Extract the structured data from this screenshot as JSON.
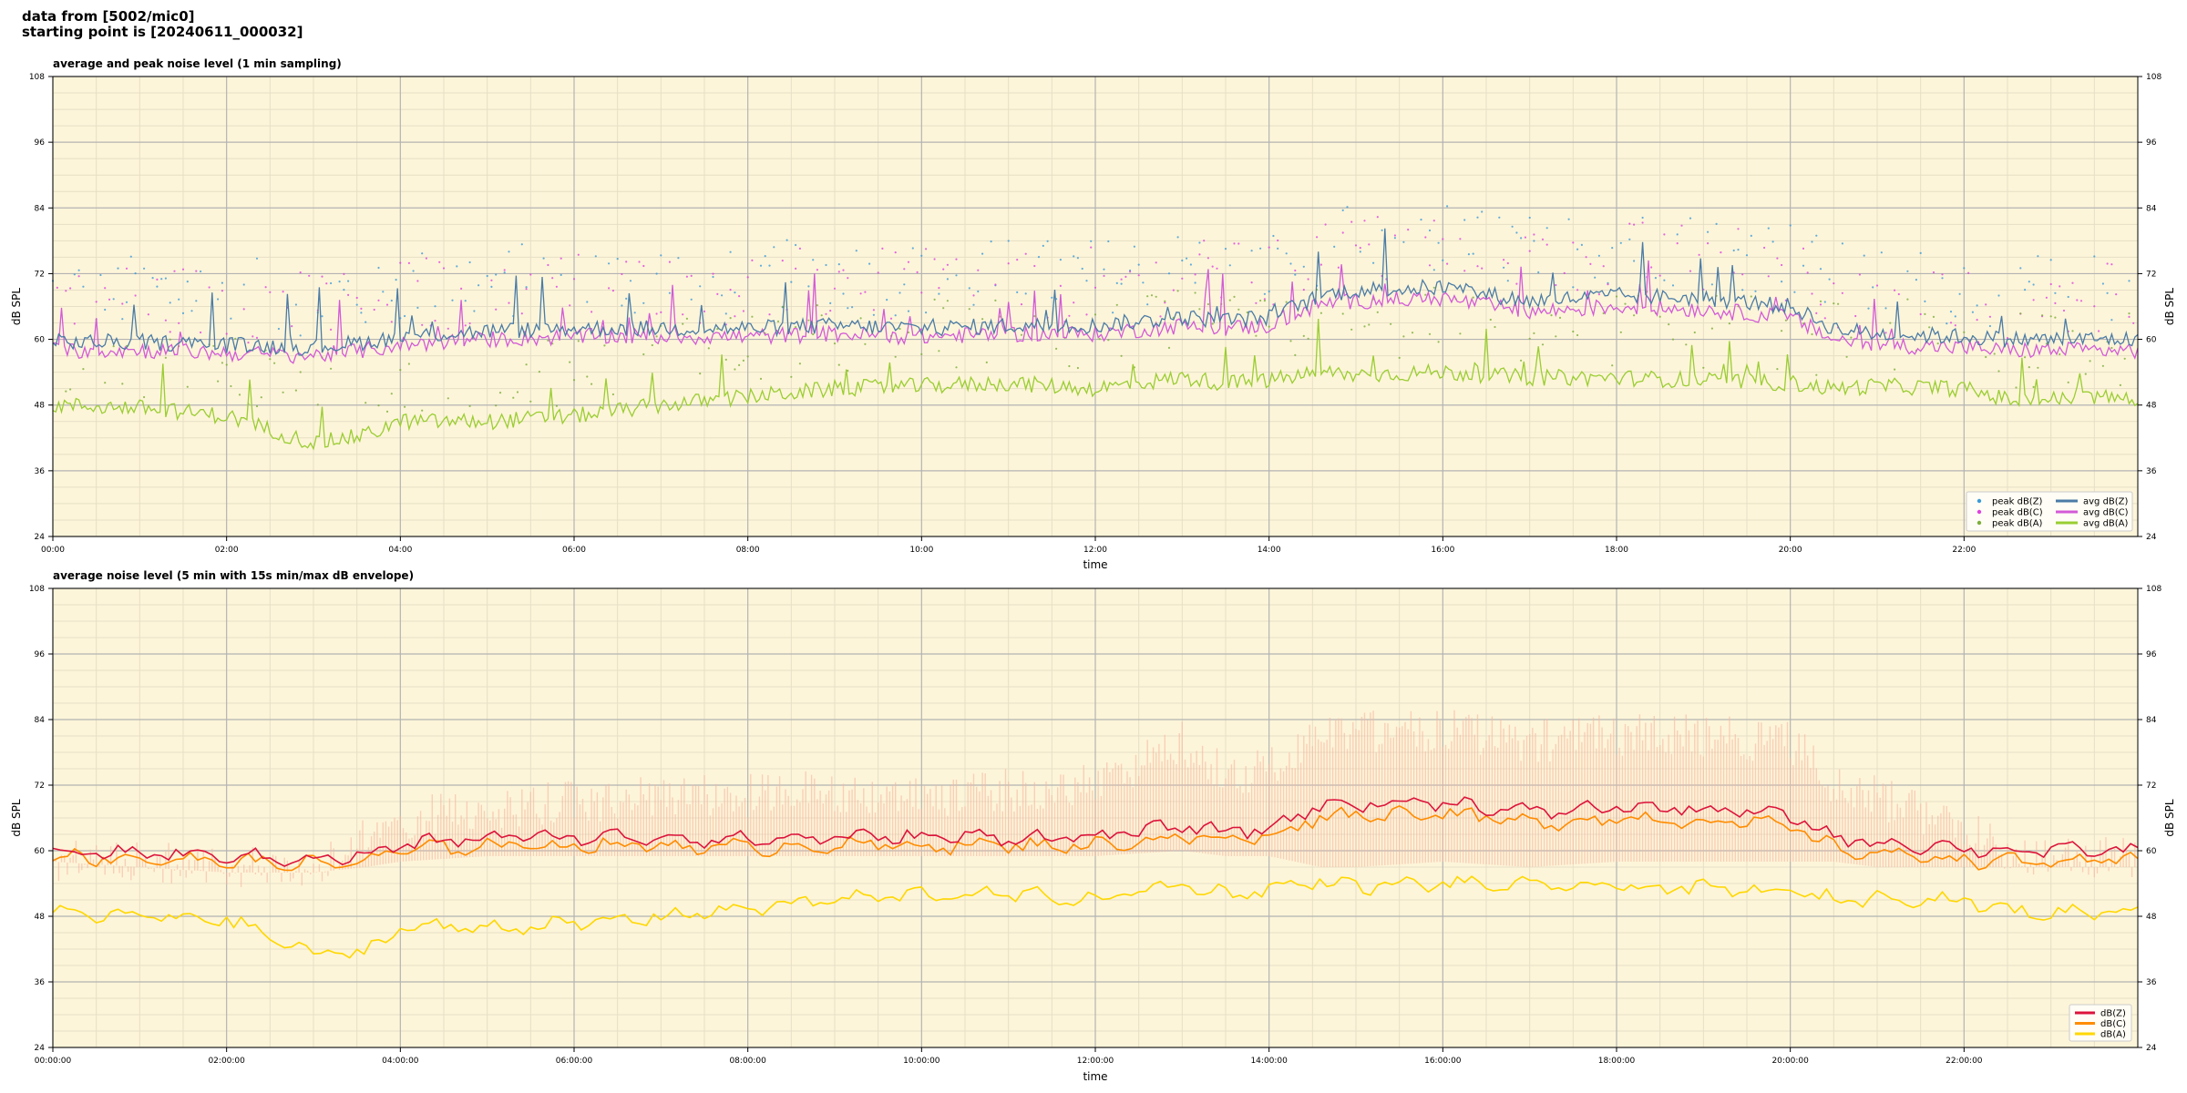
{
  "header": {
    "line1": "data from [5002/mic0]",
    "line2": "starting point is [20240611_000032]"
  },
  "colors": {
    "plot_bg": "#fdf5d9",
    "major_grid": "#b3b3b3",
    "minor_grid": "#e6dfc6",
    "dbz": "#4a7ba6",
    "dbc": "#d35ad7",
    "dba": "#9acd32",
    "dbz_avg": "#dc143c",
    "dbc_avg": "#ff8c00",
    "dba_avg": "#ffd700",
    "envelope": "#f5b7a0"
  },
  "chart_data": [
    {
      "type": "line",
      "title": "average and peak noise level (1 min sampling)",
      "xlabel": "time",
      "ylabel": "dB SPL",
      "ylim": [
        24,
        108
      ],
      "yticks": [
        24,
        36,
        48,
        60,
        72,
        84,
        96,
        108
      ],
      "xlim_hours": [
        0,
        24
      ],
      "xtick_hours": [
        0,
        2,
        4,
        6,
        8,
        10,
        12,
        14,
        16,
        18,
        20,
        22
      ],
      "xtick_labels": [
        "00:00",
        "02:00",
        "04:00",
        "06:00",
        "08:00",
        "10:00",
        "12:00",
        "14:00",
        "16:00",
        "18:00",
        "20:00",
        "22:00"
      ],
      "grid": true,
      "legend_position": "lower-right",
      "legend": [
        {
          "label": "peak dB(Z)",
          "kind": "dot",
          "color": "#3a9ad9"
        },
        {
          "label": "peak dB(C)",
          "kind": "dot",
          "color": "#e040e0"
        },
        {
          "label": "peak dB(A)",
          "kind": "dot",
          "color": "#7cae3a"
        },
        {
          "label": "avg dB(Z)",
          "kind": "line",
          "color": "#4a7ba6"
        },
        {
          "label": "avg dB(C)",
          "kind": "line",
          "color": "#d35ad7"
        },
        {
          "label": "avg dB(A)",
          "kind": "line",
          "color": "#9acd32"
        }
      ],
      "series_keypoints": {
        "x_hours": [
          0,
          1,
          2,
          3,
          3.6,
          4,
          5,
          6,
          7,
          8,
          9,
          10,
          11,
          12,
          13,
          13.5,
          14,
          14.6,
          15,
          16,
          17,
          18,
          19,
          20,
          20.5,
          21,
          22,
          22.5,
          23,
          23.5,
          24
        ],
        "avg_z": [
          59.5,
          59.5,
          59.0,
          58.5,
          59.5,
          60.5,
          61.5,
          62.0,
          62.0,
          62.0,
          62.5,
          62.0,
          62.5,
          62.5,
          64.0,
          63.5,
          64.0,
          68.0,
          69.0,
          69.5,
          67.0,
          68.0,
          67.5,
          66.0,
          62.0,
          61.0,
          60.5,
          60.0,
          60.0,
          60.0,
          60.0
        ],
        "avg_c": [
          58.0,
          58.0,
          57.5,
          57.0,
          58.0,
          59.0,
          60.0,
          60.5,
          60.5,
          60.5,
          61.0,
          60.5,
          61.0,
          61.0,
          62.5,
          62.0,
          62.5,
          66.5,
          67.0,
          67.5,
          65.0,
          66.0,
          65.5,
          64.0,
          60.0,
          59.0,
          58.5,
          58.0,
          58.0,
          58.0,
          58.0
        ],
        "avg_a": [
          48.0,
          47.5,
          46.0,
          41.0,
          42.5,
          45.0,
          45.0,
          46.0,
          48.0,
          49.5,
          51.0,
          51.5,
          52.0,
          51.0,
          53.0,
          52.0,
          52.5,
          54.0,
          53.5,
          54.0,
          53.0,
          53.0,
          52.5,
          52.0,
          51.0,
          51.5,
          51.0,
          49.0,
          49.0,
          49.5,
          49.0
        ]
      }
    },
    {
      "type": "line",
      "title": "average noise level (5 min with 15s min/max dB envelope)",
      "xlabel": "time",
      "ylabel": "dB SPL",
      "ylim": [
        24,
        108
      ],
      "yticks": [
        24,
        36,
        48,
        60,
        72,
        84,
        96,
        108
      ],
      "xlim_hours": [
        0,
        24
      ],
      "xtick_hours": [
        0,
        2,
        4,
        6,
        8,
        10,
        12,
        14,
        16,
        18,
        20,
        22
      ],
      "xtick_labels": [
        "00:00:00",
        "02:00:00",
        "04:00:00",
        "06:00:00",
        "08:00:00",
        "10:00:00",
        "12:00:00",
        "14:00:00",
        "16:00:00",
        "18:00:00",
        "20:00:00",
        "22:00:00"
      ],
      "grid": true,
      "legend_position": "lower-right",
      "legend": [
        {
          "label": "dB(Z)",
          "kind": "line",
          "color": "#dc143c"
        },
        {
          "label": "dB(C)",
          "kind": "line",
          "color": "#ff8c00"
        },
        {
          "label": "dB(A)",
          "kind": "line",
          "color": "#ffd700"
        }
      ],
      "series_keypoints": {
        "x_hours": [
          0,
          1,
          2,
          3,
          3.6,
          4,
          5,
          6,
          7,
          8,
          9,
          10,
          11,
          12,
          13,
          13.5,
          14,
          14.6,
          15,
          16,
          17,
          18,
          19,
          20,
          20.5,
          21,
          22,
          22.5,
          23,
          23.5,
          24
        ],
        "z": [
          60.0,
          59.5,
          59.0,
          58.5,
          59.0,
          61.0,
          62.5,
          62.5,
          62.5,
          62.0,
          62.5,
          62.5,
          62.5,
          62.5,
          64.5,
          63.5,
          64.0,
          68.5,
          68.5,
          69.0,
          67.0,
          68.0,
          67.5,
          66.5,
          62.5,
          61.5,
          60.5,
          60.0,
          60.0,
          60.0,
          60.0
        ],
        "c": [
          59.0,
          58.5,
          58.0,
          57.5,
          58.0,
          60.0,
          61.0,
          61.0,
          61.0,
          60.5,
          61.0,
          61.0,
          61.0,
          61.0,
          62.5,
          62.0,
          62.5,
          66.5,
          66.5,
          67.0,
          65.0,
          66.0,
          65.5,
          64.5,
          60.5,
          59.5,
          58.5,
          58.0,
          58.0,
          58.0,
          58.0
        ],
        "a": [
          48.5,
          48.0,
          47.5,
          41.0,
          41.5,
          46.0,
          46.0,
          46.5,
          48.0,
          49.5,
          51.0,
          52.0,
          52.0,
          51.0,
          54.0,
          52.0,
          53.0,
          54.5,
          53.5,
          54.0,
          53.5,
          53.5,
          53.0,
          52.5,
          51.0,
          51.5,
          51.0,
          49.0,
          48.5,
          49.0,
          49.0
        ],
        "envelope_max": [
          62,
          62,
          61,
          60,
          66,
          70,
          72,
          73,
          74,
          74,
          75,
          74,
          75,
          76,
          84,
          78,
          79,
          86,
          86,
          86,
          84,
          85,
          85,
          84,
          76,
          74,
          68,
          64,
          63,
          63,
          63
        ],
        "envelope_min": [
          58,
          57,
          56,
          56,
          57,
          58,
          59,
          59,
          59,
          59,
          59,
          59,
          59,
          59,
          60,
          59,
          59,
          57,
          57,
          58,
          57,
          58,
          58,
          58,
          58,
          57,
          57,
          57,
          57,
          57,
          57
        ]
      }
    }
  ]
}
